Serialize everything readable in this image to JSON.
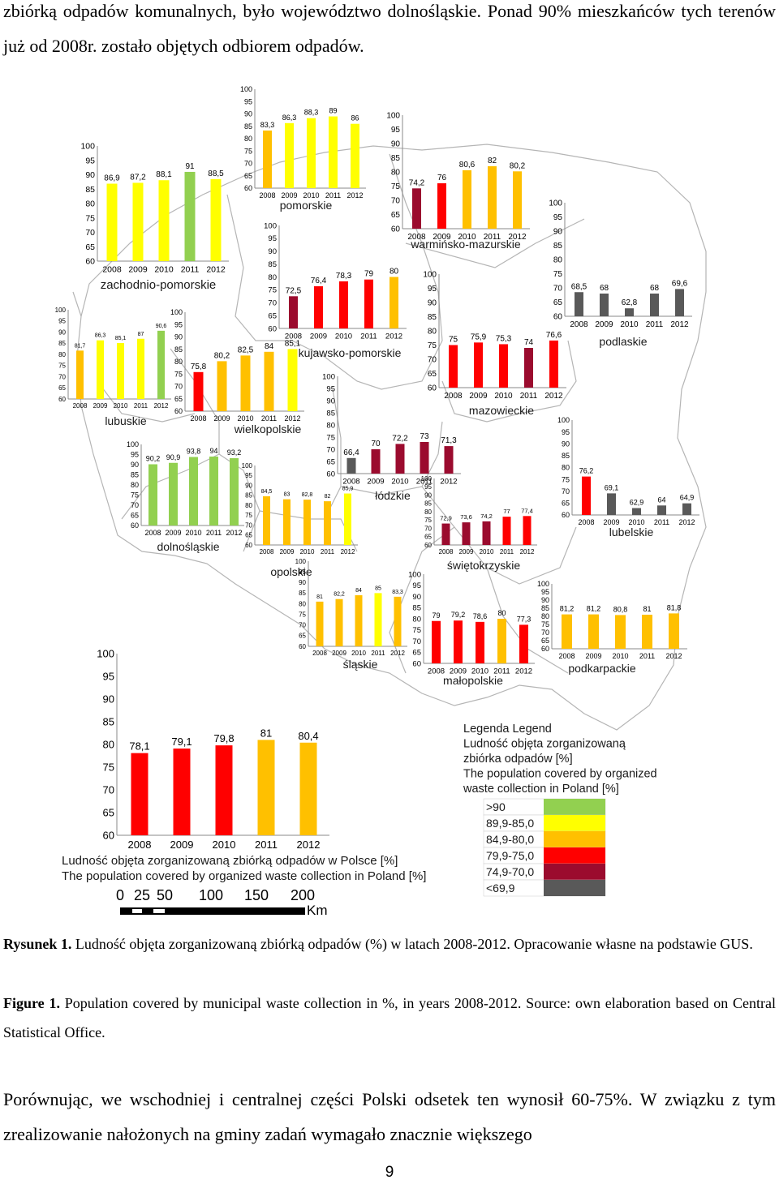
{
  "text": {
    "intro": "zbiórką odpadów komunalnych, było województwo dolnośląskie. Ponad 90% mieszkańców tych terenów już od 2008r. zostało objętych odbiorem odpadów.",
    "caption_pl_label": "Rysunek 1.",
    "caption_pl": "Ludność objęta zorganizowaną zbiórką odpadów (%) w latach 2008-2012. Opracowanie własne na podstawie GUS.",
    "caption_en_label": "Figure 1.",
    "caption_en": "Population covered by municipal waste collection in %, in years 2008-2012. Source: own elaboration based on Central Statistical Office.",
    "outro": "Porównując, we wschodniej i centralnej części Polski odsetek ten wynosił 60-75%. W związku z tym zrealizowanie nałożonych na gminy zadań wymagało znacznie większego",
    "page_number": "9"
  },
  "legend": {
    "title_lines": [
      "Legenda Legend",
      "Ludność objęta zorganizowaną",
      "zbiórka odpadów [%]",
      "The population covered by organized",
      "waste collection in Poland [%]"
    ],
    "classes": [
      {
        "label": ">90",
        "color": "#92D050"
      },
      {
        "label": "89,9-85,0",
        "color": "#FFFF00"
      },
      {
        "label": "84,9-80,0",
        "color": "#FFC000"
      },
      {
        "label": "79,9-75,0",
        "color": "#FF0000"
      },
      {
        "label": "74,9-70,0",
        "color": "#9B0B2E"
      },
      {
        "label": "<69,9",
        "color": "#595959"
      }
    ]
  },
  "scale_bar": {
    "ticks": [
      "0",
      "25",
      "50",
      "100",
      "150",
      "200"
    ],
    "unit": "Km"
  },
  "chart_data": [
    {
      "type": "bar",
      "name": "zachodnio-pomorskie",
      "categories": [
        "2008",
        "2009",
        "2010",
        "2011",
        "2012"
      ],
      "values": [
        86.9,
        87.2,
        88.1,
        91,
        88.5
      ],
      "labels": [
        "86,9",
        "87,2",
        "88,1",
        "91",
        "88,5"
      ],
      "ylim": [
        60,
        100
      ],
      "yticks": [
        "60",
        "65",
        "70",
        "75",
        "80",
        "85",
        "90",
        "95",
        "100"
      ]
    },
    {
      "type": "bar",
      "name": "pomorskie",
      "categories": [
        "2008",
        "2009",
        "2010",
        "2011",
        "2012"
      ],
      "values": [
        83.3,
        86.3,
        88.3,
        89,
        86
      ],
      "labels": [
        "83,3",
        "86,3",
        "88,3",
        "89",
        "86"
      ],
      "ylim": [
        60,
        100
      ],
      "yticks": [
        "60",
        "65",
        "70",
        "75",
        "80",
        "85",
        "90",
        "95",
        "100"
      ]
    },
    {
      "type": "bar",
      "name": "warmińsko-mazurskie",
      "categories": [
        "2008",
        "2009",
        "2010",
        "2011",
        "2012"
      ],
      "values": [
        74.2,
        76,
        80.6,
        82,
        80.2
      ],
      "labels": [
        "74,2",
        "76",
        "80,6",
        "82",
        "80,2"
      ],
      "ylim": [
        60,
        100
      ],
      "yticks": [
        "60",
        "65",
        "70",
        "75",
        "80",
        "85",
        "90",
        "95",
        "100"
      ]
    },
    {
      "type": "bar",
      "name": "podlaskie",
      "categories": [
        "2008",
        "2009",
        "2010",
        "2011",
        "2012"
      ],
      "values": [
        68.5,
        68,
        62.8,
        68,
        69.6
      ],
      "labels": [
        "68,5",
        "68",
        "62,8",
        "68",
        "69,6"
      ],
      "ylim": [
        60,
        100
      ],
      "yticks": [
        "60",
        "65",
        "70",
        "75",
        "80",
        "85",
        "90",
        "95",
        "100"
      ]
    },
    {
      "type": "bar",
      "name": "lubuskie",
      "categories": [
        "2008",
        "2009",
        "2010",
        "2011",
        "2012"
      ],
      "values": [
        81.7,
        86.3,
        85.1,
        87,
        90.6
      ],
      "labels": [
        "81,7",
        "86,3",
        "85,1",
        "87",
        "90,6"
      ],
      "ylim": [
        60,
        100
      ],
      "yticks": [
        "60",
        "65",
        "70",
        "75",
        "80",
        "85",
        "90",
        "95",
        "100"
      ]
    },
    {
      "type": "bar",
      "name": "wielkopolskie",
      "categories": [
        "2008",
        "2009",
        "2010",
        "2011",
        "2012"
      ],
      "values": [
        75.8,
        80.2,
        82.5,
        84,
        85.1
      ],
      "labels": [
        "75,8",
        "80,2",
        "82,5",
        "84",
        "85,1"
      ],
      "ylim": [
        60,
        100
      ],
      "yticks": [
        "60",
        "65",
        "70",
        "75",
        "80",
        "85",
        "90",
        "95",
        "100"
      ]
    },
    {
      "type": "bar",
      "name": "kujawsko-pomorskie",
      "categories": [
        "2008",
        "2009",
        "2010",
        "2011",
        "2012"
      ],
      "values": [
        72.5,
        76.4,
        78.3,
        79,
        80
      ],
      "labels": [
        "72,5",
        "76,4",
        "78,3",
        "79",
        "80"
      ],
      "ylim": [
        60,
        100
      ],
      "yticks": [
        "60",
        "65",
        "70",
        "75",
        "80",
        "85",
        "90",
        "95",
        "100"
      ]
    },
    {
      "type": "bar",
      "name": "mazowieckie",
      "categories": [
        "2008",
        "2009",
        "2010",
        "2011",
        "2012"
      ],
      "values": [
        75,
        75.9,
        75.3,
        74,
        76.6
      ],
      "labels": [
        "75",
        "75,9",
        "75,3",
        "74",
        "76,6"
      ],
      "ylim": [
        60,
        100
      ],
      "yticks": [
        "60",
        "65",
        "70",
        "75",
        "80",
        "85",
        "90",
        "95",
        "100"
      ]
    },
    {
      "type": "bar",
      "name": "łódzkie",
      "categories": [
        "2008",
        "2009",
        "2010",
        "2011",
        "2012"
      ],
      "values": [
        66.4,
        70,
        72.2,
        73,
        71.3
      ],
      "labels": [
        "66,4",
        "70",
        "72,2",
        "73",
        "71,3"
      ],
      "ylim": [
        60,
        100
      ],
      "yticks": [
        "60",
        "65",
        "70",
        "75",
        "80",
        "85",
        "90",
        "95",
        "100"
      ]
    },
    {
      "type": "bar",
      "name": "dolnośląskie",
      "categories": [
        "2008",
        "2009",
        "2010",
        "2011",
        "2012"
      ],
      "values": [
        90.2,
        90.9,
        93.8,
        94,
        93.2
      ],
      "labels": [
        "90,2",
        "90,9",
        "93,8",
        "94",
        "93,2"
      ],
      "ylim": [
        60,
        100
      ],
      "yticks": [
        "60",
        "65",
        "70",
        "75",
        "80",
        "85",
        "90",
        "95",
        "100"
      ]
    },
    {
      "type": "bar",
      "name": "opolskie",
      "categories": [
        "2008",
        "2009",
        "2010",
        "2011",
        "2012"
      ],
      "values": [
        84.5,
        83,
        82.8,
        82,
        85.9
      ],
      "labels": [
        "84,5",
        "83",
        "82,8",
        "82",
        "85,9"
      ],
      "ylim": [
        60,
        100
      ],
      "yticks": [
        "60",
        "65",
        "70",
        "75",
        "80",
        "85",
        "90",
        "95",
        "100"
      ]
    },
    {
      "type": "bar",
      "name": "lubelskie",
      "categories": [
        "2008",
        "2009",
        "2010",
        "2011",
        "2012"
      ],
      "values": [
        76.2,
        69.1,
        62.9,
        64,
        64.9
      ],
      "labels": [
        "76,2",
        "69,1",
        "62,9",
        "64",
        "64,9"
      ],
      "ylim": [
        60,
        100
      ],
      "yticks": [
        "60",
        "65",
        "70",
        "75",
        "80",
        "85",
        "90",
        "95",
        "100"
      ]
    },
    {
      "type": "bar",
      "name": "świętokrzyskie",
      "categories": [
        "2008",
        "2009",
        "2010",
        "2011",
        "2012"
      ],
      "values": [
        72.9,
        73.6,
        74.2,
        77,
        77.4
      ],
      "labels": [
        "72,9",
        "73,6",
        "74,2",
        "77",
        "77,4"
      ],
      "ylim": [
        60,
        100
      ],
      "yticks": [
        "60",
        "65",
        "70",
        "75",
        "80",
        "85",
        "90",
        "95",
        "100"
      ]
    },
    {
      "type": "bar",
      "name": "śląskie",
      "categories": [
        "2008",
        "2009",
        "2010",
        "2011",
        "2012"
      ],
      "values": [
        81,
        82.2,
        84,
        85,
        83.3
      ],
      "labels": [
        "81",
        "82,2",
        "84",
        "85",
        "83,3"
      ],
      "ylim": [
        60,
        100
      ],
      "yticks": [
        "60",
        "65",
        "70",
        "75",
        "80",
        "85",
        "90",
        "95",
        "100"
      ]
    },
    {
      "type": "bar",
      "name": "małopolskie",
      "categories": [
        "2008",
        "2009",
        "2010",
        "2011",
        "2012"
      ],
      "values": [
        79,
        79.2,
        78.6,
        80,
        77.3
      ],
      "labels": [
        "79",
        "79,2",
        "78,6",
        "80",
        "77,3"
      ],
      "ylim": [
        60,
        100
      ],
      "yticks": [
        "60",
        "65",
        "70",
        "75",
        "80",
        "85",
        "90",
        "95",
        "100"
      ]
    },
    {
      "type": "bar",
      "name": "podkarpackie",
      "categories": [
        "2008",
        "2009",
        "2010",
        "2011",
        "2012"
      ],
      "values": [
        81.2,
        81.2,
        80.8,
        81,
        81.8
      ],
      "labels": [
        "81,2",
        "81,2",
        "80,8",
        "81",
        "81,8"
      ],
      "ylim": [
        60,
        100
      ],
      "yticks": [
        "60",
        "65",
        "70",
        "75",
        "80",
        "85",
        "90",
        "95",
        "100"
      ]
    },
    {
      "type": "bar",
      "name": "Polska",
      "title_lines": [
        "Ludność objęta zorganizowaną zbiórką odpadów w Polsce [%]",
        "The population covered by organized waste collection in Poland [%]"
      ],
      "categories": [
        "2008",
        "2009",
        "2010",
        "2011",
        "2012"
      ],
      "values": [
        78.1,
        79.1,
        79.8,
        81,
        80.4
      ],
      "labels": [
        "78,1",
        "79,1",
        "79,8",
        "81",
        "80,4"
      ],
      "ylim": [
        60,
        100
      ],
      "yticks": [
        "60",
        "65",
        "70",
        "75",
        "80",
        "85",
        "90",
        "95",
        "100"
      ]
    }
  ]
}
